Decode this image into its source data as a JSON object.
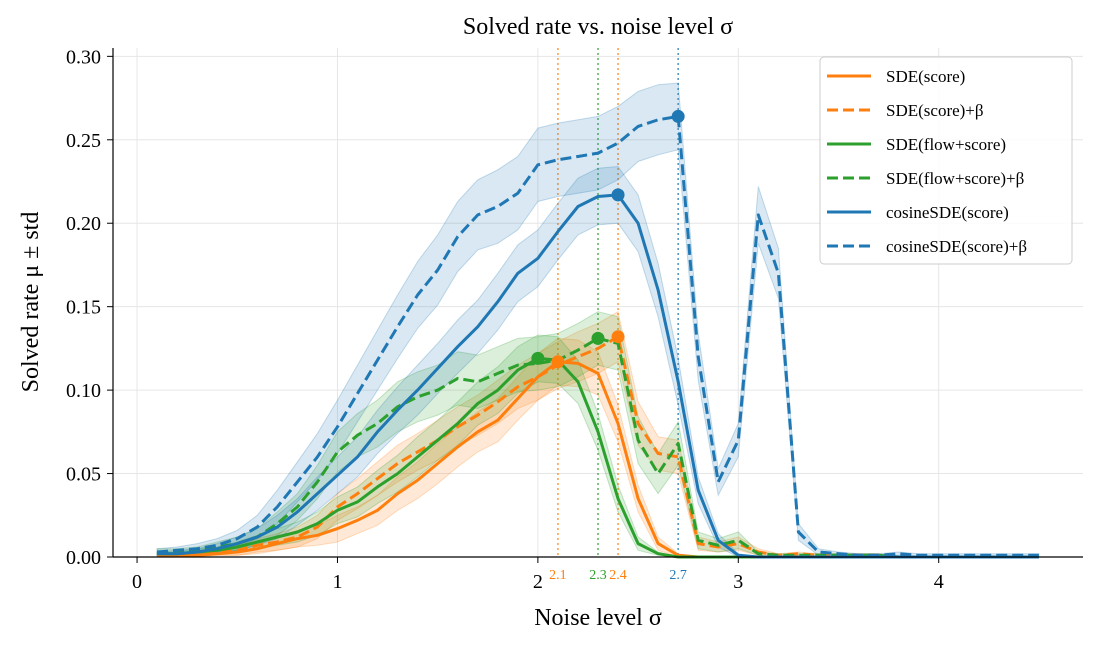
{
  "chart_data": {
    "type": "line",
    "title": "Solved rate vs. noise level σ",
    "xlabel": "Noise level σ",
    "ylabel": "Solved rate μ ± std",
    "xlim": [
      -0.12,
      4.72
    ],
    "ylim": [
      0,
      0.305
    ],
    "xticks": [
      0,
      1,
      2,
      3,
      4
    ],
    "xtick_labels": [
      "0",
      "1",
      "2",
      "3",
      "4"
    ],
    "yticks": [
      0,
      0.05,
      0.1,
      0.15,
      0.2,
      0.25,
      0.3
    ],
    "ytick_labels": [
      "0.00",
      "0.05",
      "0.10",
      "0.15",
      "0.20",
      "0.25",
      "0.30"
    ],
    "grid": true,
    "legend_position": "top-right",
    "x": [
      0.1,
      0.2,
      0.3,
      0.4,
      0.5,
      0.6,
      0.7,
      0.8,
      0.9,
      1.0,
      1.1,
      1.2,
      1.3,
      1.4,
      1.5,
      1.6,
      1.7,
      1.8,
      1.9,
      2.0,
      2.1,
      2.2,
      2.3,
      2.4,
      2.5,
      2.6,
      2.7,
      2.8,
      2.9,
      3.0,
      3.1,
      3.2,
      3.3,
      3.4,
      3.5,
      3.6,
      3.7,
      3.8,
      3.9,
      4.0,
      4.1,
      4.2,
      4.3,
      4.4,
      4.5
    ],
    "series": [
      {
        "name": "SDE(score)",
        "color": "#ff7f0e",
        "dash": "solid",
        "values": [
          0.001,
          0.001,
          0.001,
          0.002,
          0.003,
          0.005,
          0.008,
          0.011,
          0.013,
          0.017,
          0.022,
          0.028,
          0.038,
          0.046,
          0.056,
          0.066,
          0.075,
          0.082,
          0.095,
          0.108,
          0.117,
          0.116,
          0.11,
          0.08,
          0.035,
          0.008,
          0.001,
          0,
          0,
          0,
          0,
          0,
          0,
          0,
          0,
          0,
          0,
          0,
          0,
          0,
          0,
          0,
          0,
          0,
          0
        ],
        "std": [
          0.001,
          0.001,
          0.001,
          0.001,
          0.002,
          0.003,
          0.004,
          0.005,
          0.006,
          0.008,
          0.008,
          0.009,
          0.01,
          0.011,
          0.012,
          0.012,
          0.012,
          0.013,
          0.013,
          0.014,
          0.014,
          0.014,
          0.013,
          0.011,
          0.008,
          0.004,
          0.001,
          0,
          0,
          0,
          0,
          0,
          0,
          0,
          0,
          0,
          0,
          0,
          0,
          0,
          0,
          0,
          0,
          0,
          0
        ],
        "peak": [
          2.1,
          0.117
        ]
      },
      {
        "name": "SDE(score)+β",
        "color": "#ff7f0e",
        "dash": "dashed",
        "values": [
          0.001,
          0.001,
          0.002,
          0.003,
          0.004,
          0.007,
          0.009,
          0.012,
          0.018,
          0.03,
          0.038,
          0.047,
          0.056,
          0.063,
          0.07,
          0.078,
          0.085,
          0.093,
          0.102,
          0.108,
          0.115,
          0.12,
          0.125,
          0.132,
          0.08,
          0.062,
          0.06,
          0.008,
          0.006,
          0.008,
          0.003,
          0.001,
          0.002,
          0.001,
          0.001,
          0.001,
          0.001,
          0,
          0,
          0,
          0,
          0,
          0,
          0,
          0
        ],
        "std": [
          0.001,
          0.001,
          0.001,
          0.002,
          0.003,
          0.004,
          0.005,
          0.006,
          0.007,
          0.008,
          0.009,
          0.01,
          0.011,
          0.011,
          0.012,
          0.012,
          0.012,
          0.013,
          0.013,
          0.014,
          0.014,
          0.015,
          0.015,
          0.015,
          0.013,
          0.01,
          0.01,
          0.004,
          0.003,
          0.004,
          0.002,
          0.001,
          0.001,
          0.001,
          0.001,
          0.001,
          0.001,
          0,
          0,
          0,
          0,
          0,
          0,
          0,
          0
        ],
        "peak": [
          2.4,
          0.132
        ]
      },
      {
        "name": "SDE(flow+score)",
        "color": "#2ca02c",
        "dash": "solid",
        "values": [
          0.002,
          0.002,
          0.003,
          0.004,
          0.006,
          0.009,
          0.012,
          0.015,
          0.02,
          0.028,
          0.033,
          0.042,
          0.05,
          0.06,
          0.07,
          0.08,
          0.092,
          0.1,
          0.112,
          0.119,
          0.118,
          0.105,
          0.075,
          0.035,
          0.008,
          0.002,
          0,
          0,
          0,
          0,
          0,
          0,
          0,
          0,
          0,
          0,
          0,
          0,
          0,
          0,
          0,
          0,
          0,
          0,
          0
        ],
        "std": [
          0.001,
          0.001,
          0.002,
          0.002,
          0.003,
          0.004,
          0.005,
          0.006,
          0.007,
          0.008,
          0.009,
          0.01,
          0.011,
          0.012,
          0.012,
          0.013,
          0.013,
          0.014,
          0.014,
          0.014,
          0.014,
          0.013,
          0.011,
          0.008,
          0.004,
          0.001,
          0,
          0,
          0,
          0,
          0,
          0,
          0,
          0,
          0,
          0,
          0,
          0,
          0,
          0,
          0,
          0,
          0,
          0,
          0
        ],
        "peak": [
          2.0,
          0.119
        ]
      },
      {
        "name": "SDE(flow+score)+β",
        "color": "#2ca02c",
        "dash": "dashed",
        "values": [
          0.003,
          0.003,
          0.004,
          0.006,
          0.008,
          0.012,
          0.02,
          0.03,
          0.045,
          0.063,
          0.073,
          0.08,
          0.09,
          0.096,
          0.1,
          0.107,
          0.105,
          0.11,
          0.115,
          0.116,
          0.118,
          0.124,
          0.131,
          0.128,
          0.07,
          0.05,
          0.068,
          0.01,
          0.007,
          0.01,
          0.002,
          0.001,
          0.001,
          0.001,
          0.001,
          0.001,
          0.001,
          0,
          0,
          0,
          0,
          0,
          0,
          0,
          0
        ],
        "std": [
          0.002,
          0.002,
          0.002,
          0.003,
          0.004,
          0.005,
          0.007,
          0.008,
          0.01,
          0.012,
          0.013,
          0.014,
          0.015,
          0.015,
          0.015,
          0.016,
          0.016,
          0.016,
          0.016,
          0.016,
          0.016,
          0.016,
          0.016,
          0.016,
          0.014,
          0.012,
          0.013,
          0.005,
          0.004,
          0.005,
          0.001,
          0.001,
          0.001,
          0.001,
          0.001,
          0.001,
          0.001,
          0,
          0,
          0,
          0,
          0,
          0,
          0,
          0
        ],
        "peak": [
          2.3,
          0.131
        ]
      },
      {
        "name": "cosineSDE(score)",
        "color": "#1f77b4",
        "dash": "solid",
        "values": [
          0.002,
          0.002,
          0.003,
          0.005,
          0.008,
          0.012,
          0.018,
          0.027,
          0.038,
          0.049,
          0.06,
          0.075,
          0.088,
          0.1,
          0.113,
          0.126,
          0.138,
          0.153,
          0.17,
          0.179,
          0.195,
          0.21,
          0.216,
          0.217,
          0.2,
          0.16,
          0.105,
          0.04,
          0.01,
          0.001,
          0,
          0,
          0,
          0,
          0,
          0,
          0,
          0,
          0,
          0,
          0,
          0,
          0,
          0,
          0
        ],
        "std": [
          0.001,
          0.002,
          0.002,
          0.003,
          0.004,
          0.005,
          0.007,
          0.008,
          0.01,
          0.011,
          0.012,
          0.013,
          0.014,
          0.015,
          0.015,
          0.016,
          0.016,
          0.017,
          0.017,
          0.017,
          0.017,
          0.017,
          0.017,
          0.017,
          0.017,
          0.016,
          0.014,
          0.008,
          0.004,
          0.001,
          0,
          0,
          0,
          0,
          0,
          0,
          0,
          0,
          0,
          0,
          0,
          0,
          0,
          0,
          0
        ],
        "peak": [
          2.4,
          0.217
        ]
      },
      {
        "name": "cosineSDE(score)+β",
        "color": "#1f77b4",
        "dash": "dashed",
        "values": [
          0.003,
          0.004,
          0.005,
          0.007,
          0.011,
          0.018,
          0.03,
          0.045,
          0.06,
          0.078,
          0.098,
          0.118,
          0.138,
          0.157,
          0.172,
          0.192,
          0.205,
          0.21,
          0.218,
          0.235,
          0.238,
          0.24,
          0.242,
          0.248,
          0.258,
          0.262,
          0.264,
          0.12,
          0.045,
          0.07,
          0.205,
          0.17,
          0.015,
          0.003,
          0.002,
          0.001,
          0.001,
          0.002,
          0.001,
          0.001,
          0.001,
          0.001,
          0.001,
          0.001,
          0.001
        ],
        "std": [
          0.002,
          0.002,
          0.003,
          0.004,
          0.005,
          0.007,
          0.01,
          0.012,
          0.014,
          0.016,
          0.017,
          0.018,
          0.019,
          0.02,
          0.021,
          0.021,
          0.021,
          0.022,
          0.022,
          0.022,
          0.022,
          0.022,
          0.022,
          0.022,
          0.021,
          0.021,
          0.02,
          0.014,
          0.008,
          0.01,
          0.017,
          0.015,
          0.005,
          0.002,
          0.001,
          0.001,
          0.001,
          0.001,
          0.001,
          0.001,
          0.001,
          0.001,
          0.001,
          0.001,
          0.001
        ],
        "peak": [
          2.7,
          0.264
        ]
      }
    ],
    "vlines": [
      {
        "x": 2.1,
        "label": "2.1",
        "color": "#ff7f0e"
      },
      {
        "x": 2.3,
        "label": "2.3",
        "color": "#2ca02c"
      },
      {
        "x": 2.4,
        "label": "2.4",
        "color": "#ff7f0e"
      },
      {
        "x": 2.7,
        "label": "2.7",
        "color": "#1f77b4"
      }
    ]
  }
}
